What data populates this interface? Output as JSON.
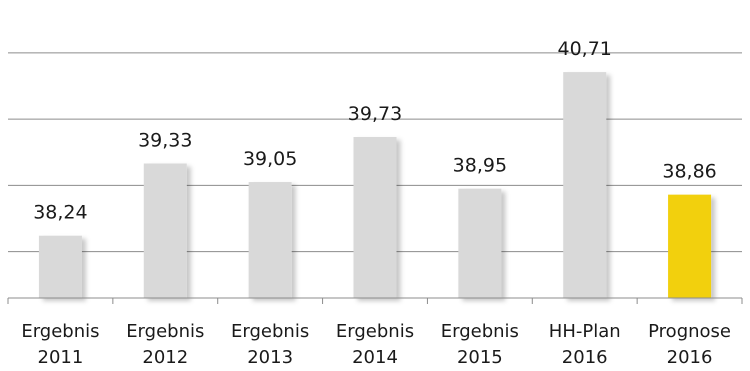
{
  "chart_data": {
    "type": "bar",
    "categories": [
      [
        "Ergebnis",
        "2011"
      ],
      [
        "Ergebnis",
        "2012"
      ],
      [
        "Ergebnis",
        "2013"
      ],
      [
        "Ergebnis",
        "2014"
      ],
      [
        "Ergebnis",
        "2015"
      ],
      [
        "HH-Plan",
        "2016"
      ],
      [
        "Prognose",
        "2016"
      ]
    ],
    "values": [
      38.24,
      39.33,
      39.05,
      39.73,
      38.95,
      40.71,
      38.86
    ],
    "value_labels": [
      "38,24",
      "39,33",
      "39,05",
      "39,73",
      "38,95",
      "40,71",
      "38,86"
    ],
    "ylim": [
      37.3,
      41.3
    ],
    "grid": true,
    "colors": {
      "bar": "#d9d9d9",
      "highlight": "#f2d00a",
      "grid": "#8c8c8c",
      "axis": "#8c8c8c"
    },
    "highlight_index": 6
  }
}
